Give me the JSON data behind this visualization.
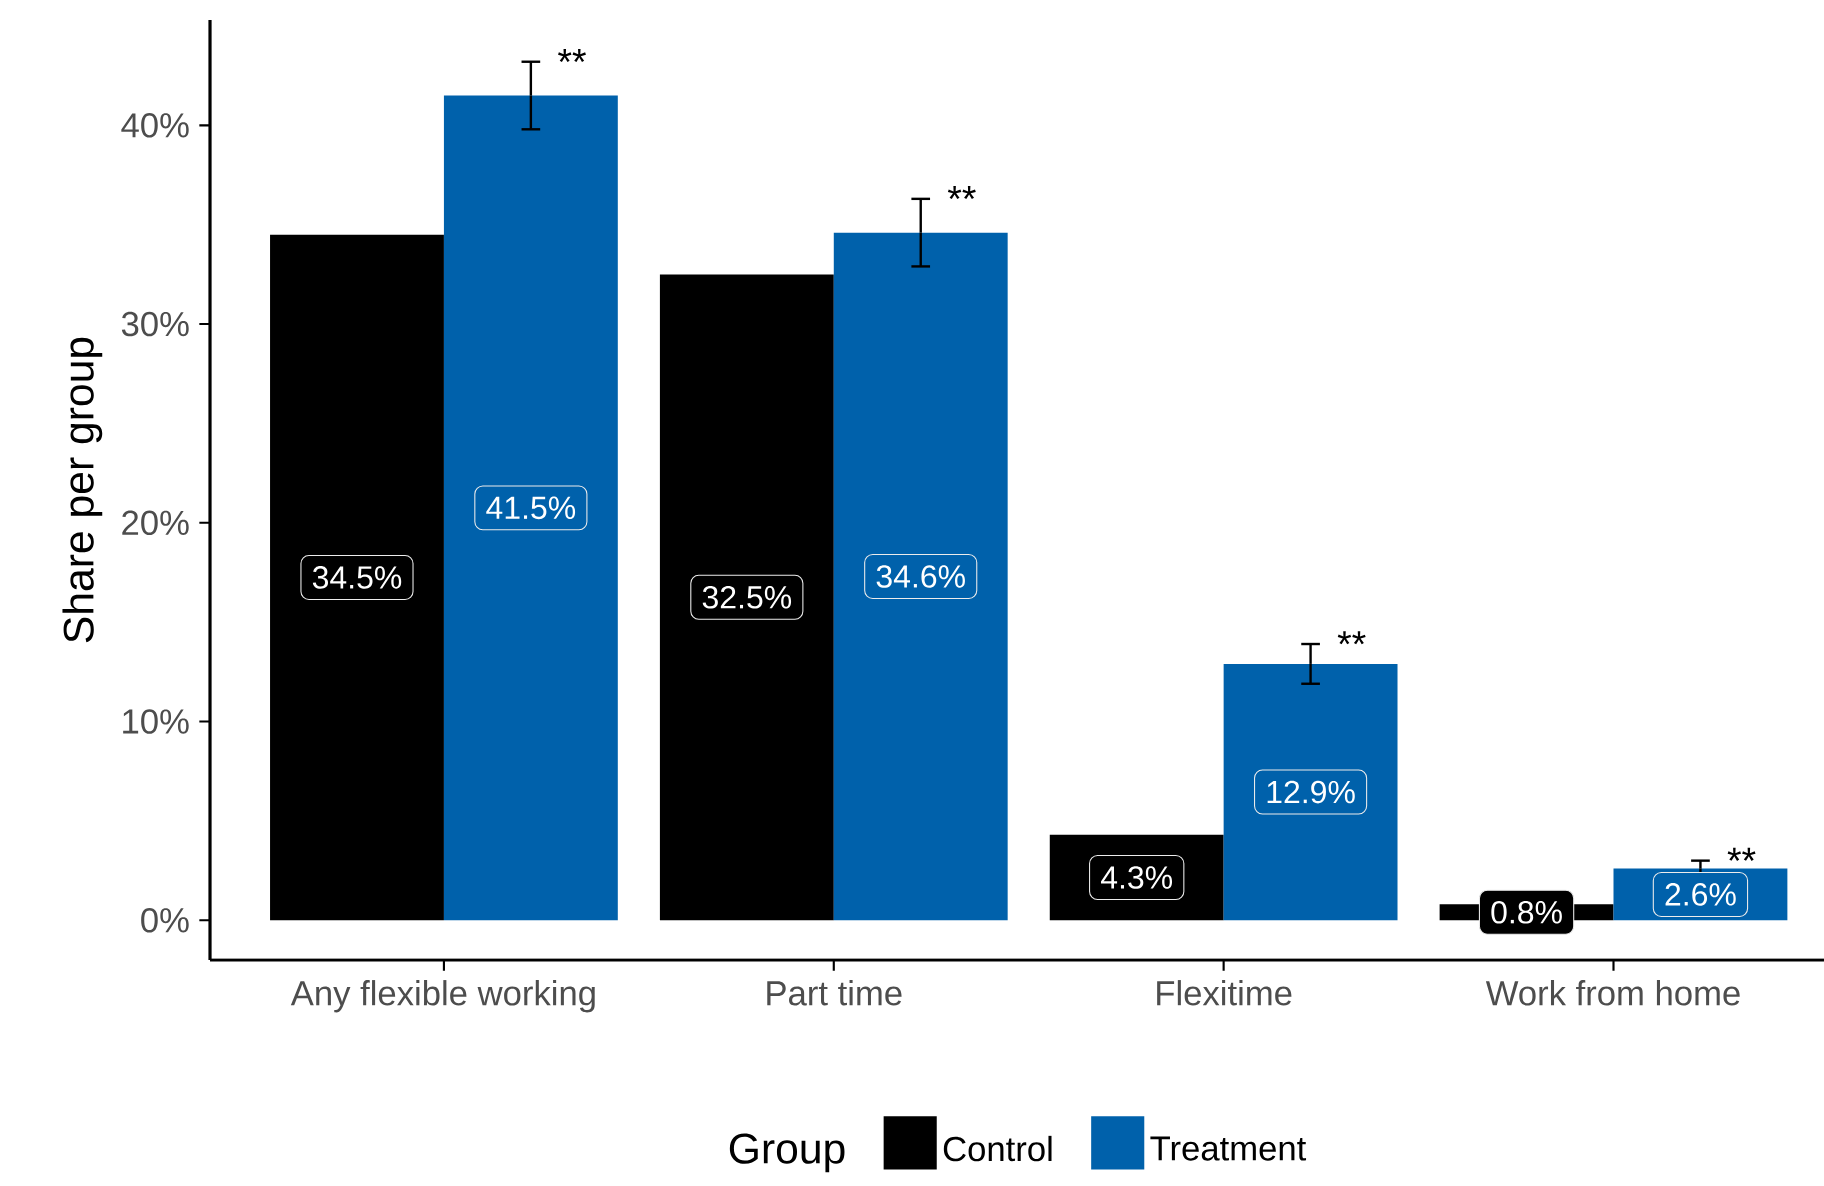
{
  "chart_data": {
    "type": "bar",
    "ylabel": "Share per group",
    "legend_title": "Group",
    "categories": [
      "Any flexible working",
      "Part time",
      "Flexitime",
      "Work from home"
    ],
    "series": [
      {
        "name": "Control",
        "color": "#000000",
        "values": [
          34.5,
          32.5,
          4.3,
          0.8
        ],
        "value_labels": [
          "34.5%",
          "32.5%",
          "4.3%",
          "0.8%"
        ]
      },
      {
        "name": "Treatment",
        "color": "#0061ab",
        "values": [
          41.5,
          34.6,
          12.9,
          2.6
        ],
        "errors": [
          1.7,
          1.7,
          1.0,
          0.4
        ],
        "value_labels": [
          "41.5%",
          "34.6%",
          "12.9%",
          "2.6%"
        ]
      }
    ],
    "ylim": [
      -2,
      45.3
    ],
    "yticks": [
      {
        "value": 0,
        "label": "0%"
      },
      {
        "value": 10,
        "label": "10%"
      },
      {
        "value": 20,
        "label": "20%"
      },
      {
        "value": 30,
        "label": "30%"
      },
      {
        "value": 40,
        "label": "40%"
      }
    ],
    "annotations": [
      "**",
      "**",
      "**",
      "**"
    ],
    "grid": false,
    "legend": "bottom"
  }
}
